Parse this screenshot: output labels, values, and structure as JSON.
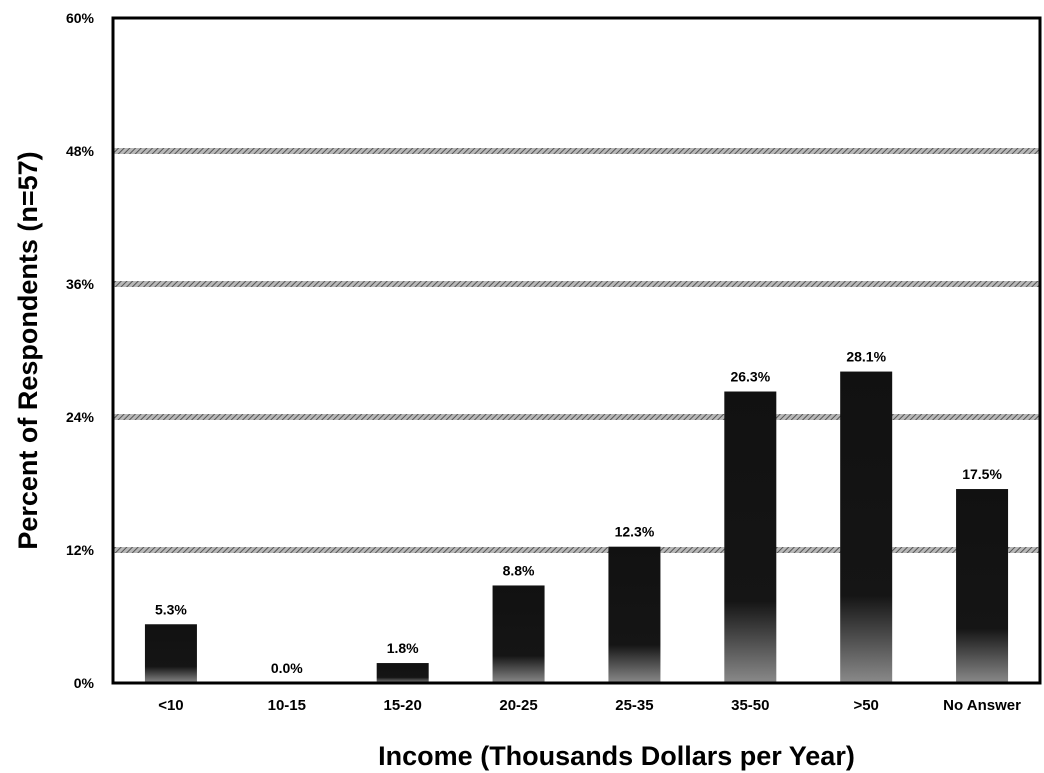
{
  "chart_data": {
    "type": "bar",
    "title": "",
    "xlabel": "Income (Thousands Dollars per Year)",
    "ylabel": "Percent of Respondents (n=57)",
    "categories": [
      "<10",
      "10-15",
      "15-20",
      "20-25",
      "25-35",
      "35-50",
      ">50",
      "No Answer"
    ],
    "values": [
      5.3,
      0.0,
      1.8,
      8.8,
      12.3,
      26.3,
      28.1,
      17.5
    ],
    "value_labels": [
      "5.3%",
      "0.0%",
      "1.8%",
      "8.8%",
      "12.3%",
      "26.3%",
      "28.1%",
      "17.5%"
    ],
    "ylim": [
      0,
      60
    ],
    "yticks": [
      0,
      12,
      24,
      36,
      48,
      60
    ],
    "ytick_labels": [
      "0%",
      "12%",
      "24%",
      "36%",
      "48%",
      "60%"
    ],
    "grid": true,
    "legend": "none",
    "colors": {
      "bar": "#111111",
      "bar_base": "#8a8a8a",
      "grid": "#8c8c8c",
      "frame": "#000000"
    }
  }
}
